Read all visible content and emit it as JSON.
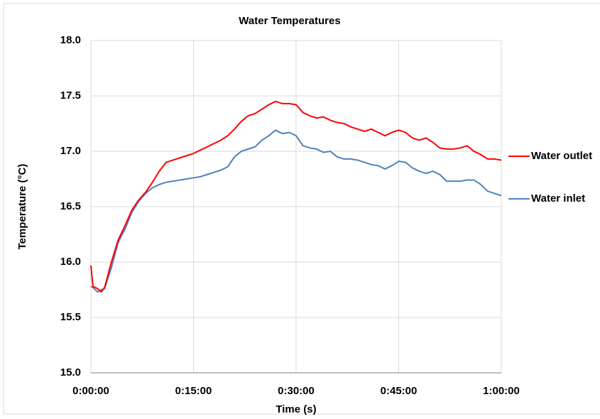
{
  "chart_data": {
    "type": "line",
    "title": "Water Temperatures",
    "xlabel": "Time (s)",
    "ylabel": "Temperature (°C)",
    "x": [
      0,
      0.3,
      1,
      1.5,
      2,
      3,
      4,
      5,
      6,
      7,
      8,
      9,
      10,
      11,
      12,
      13,
      14,
      15,
      16,
      17,
      18,
      19,
      20,
      21,
      22,
      23,
      24,
      25,
      26,
      27,
      28,
      29,
      30,
      31,
      32,
      33,
      34,
      35,
      36,
      37,
      38,
      39,
      40,
      41,
      42,
      43,
      44,
      45,
      46,
      47,
      48,
      49,
      50,
      51,
      52,
      53,
      54,
      55,
      56,
      57,
      58,
      59,
      60
    ],
    "series": [
      {
        "name": "Water outlet",
        "color": "#ff0000",
        "values": [
          15.97,
          15.78,
          15.76,
          15.73,
          15.77,
          16.0,
          16.2,
          16.33,
          16.47,
          16.56,
          16.63,
          16.72,
          16.82,
          16.9,
          16.92,
          16.94,
          16.96,
          16.98,
          17.01,
          17.04,
          17.07,
          17.1,
          17.14,
          17.2,
          17.27,
          17.32,
          17.34,
          17.38,
          17.42,
          17.45,
          17.43,
          17.43,
          17.42,
          17.35,
          17.32,
          17.3,
          17.31,
          17.28,
          17.26,
          17.25,
          17.22,
          17.2,
          17.18,
          17.2,
          17.17,
          17.14,
          17.17,
          17.19,
          17.17,
          17.12,
          17.1,
          17.12,
          17.08,
          17.03,
          17.02,
          17.02,
          17.03,
          17.05,
          17.0,
          16.97,
          16.93,
          16.93,
          16.92
        ]
      },
      {
        "name": "Water inlet",
        "color": "#4f81bd",
        "values": [
          15.78,
          15.77,
          15.73,
          15.75,
          15.76,
          15.95,
          16.18,
          16.3,
          16.45,
          16.55,
          16.62,
          16.67,
          16.7,
          16.72,
          16.73,
          16.74,
          16.75,
          16.76,
          16.77,
          16.79,
          16.81,
          16.83,
          16.86,
          16.95,
          17.0,
          17.02,
          17.04,
          17.1,
          17.14,
          17.19,
          17.16,
          17.17,
          17.14,
          17.05,
          17.03,
          17.02,
          16.99,
          17.0,
          16.95,
          16.93,
          16.93,
          16.92,
          16.9,
          16.88,
          16.87,
          16.84,
          16.87,
          16.91,
          16.9,
          16.85,
          16.82,
          16.8,
          16.82,
          16.79,
          16.73,
          16.73,
          16.73,
          16.74,
          16.74,
          16.7,
          16.64,
          16.62,
          16.6
        ]
      }
    ],
    "xlim": [
      0,
      60
    ],
    "xticks": [
      {
        "value": 0,
        "label": "0:00:00"
      },
      {
        "value": 15,
        "label": "0:15:00"
      },
      {
        "value": 30,
        "label": "0:30:00"
      },
      {
        "value": 45,
        "label": "0:45:00"
      },
      {
        "value": 60,
        "label": "1:00:00"
      }
    ],
    "ylim": [
      15,
      18
    ],
    "yticks": [
      {
        "value": 15,
        "label": "15.0"
      },
      15.5,
      {
        "value": 16,
        "label": "16.0"
      },
      16.5,
      {
        "value": 17,
        "label": "17.0"
      },
      17.5,
      {
        "value": 18,
        "label": "18.0"
      }
    ],
    "grid": true,
    "legend": "right"
  }
}
